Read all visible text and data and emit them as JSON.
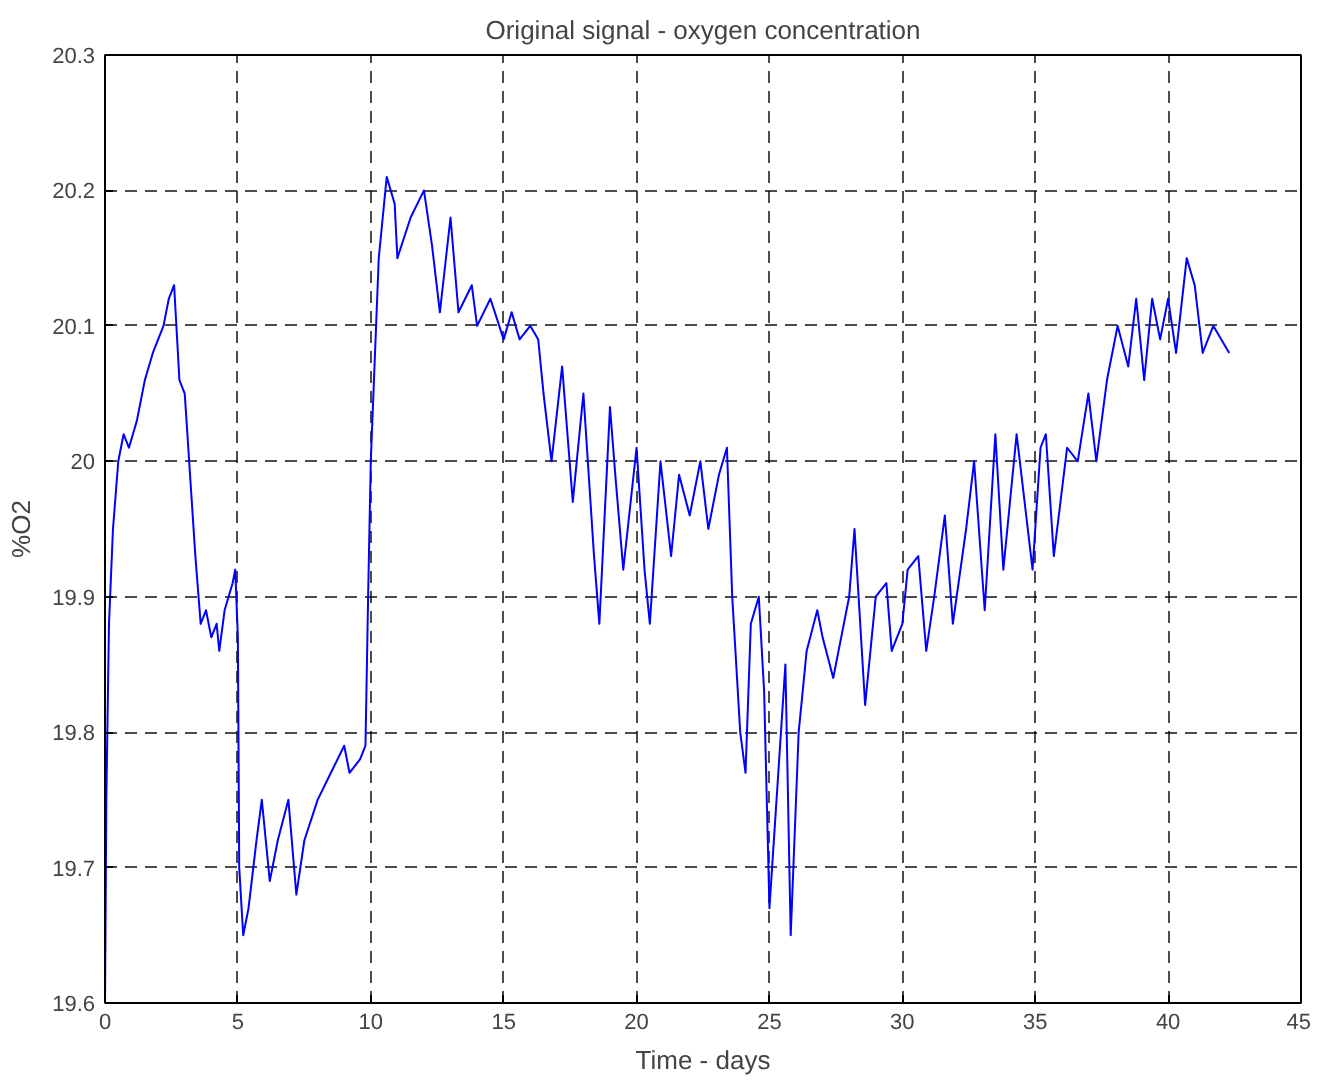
{
  "chart_data": {
    "type": "line",
    "title": "Original signal - oxygen concentration",
    "xlabel": "Time - days",
    "ylabel": "%O2",
    "xlim": [
      0,
      45
    ],
    "xticks": [
      0,
      5,
      10,
      15,
      20,
      25,
      30,
      35,
      40,
      45
    ],
    "ylim": [
      19.6,
      20.3
    ],
    "yticks": [
      19.6,
      19.7,
      19.8,
      19.9,
      20,
      20.1,
      20.2,
      20.3
    ],
    "grid": true,
    "line_style": "solid",
    "marker": "none",
    "x": [
      0,
      0.05,
      0.15,
      0.3,
      0.5,
      0.7,
      0.9,
      1.2,
      1.5,
      1.8,
      2.0,
      2.2,
      2.4,
      2.6,
      2.8,
      3.0,
      3.2,
      3.4,
      3.6,
      3.8,
      4.0,
      4.2,
      4.3,
      4.5,
      4.8,
      4.9,
      5.0,
      5.05,
      5.2,
      5.4,
      5.7,
      5.9,
      6.2,
      6.5,
      6.9,
      7.2,
      7.5,
      8.0,
      8.5,
      9.0,
      9.2,
      9.6,
      9.8,
      9.9,
      10.0,
      10.1,
      10.3,
      10.6,
      10.9,
      11.0,
      11.5,
      12.0,
      12.3,
      12.6,
      13.0,
      13.3,
      13.8,
      14.0,
      14.5,
      15.0,
      15.3,
      15.6,
      16.0,
      16.3,
      16.5,
      16.8,
      17.2,
      17.6,
      18.0,
      18.4,
      18.6,
      19.0,
      19.2,
      19.5,
      20.0,
      20.3,
      20.5,
      20.9,
      21.3,
      21.6,
      22.0,
      22.4,
      22.7,
      23.1,
      23.4,
      23.6,
      23.9,
      24.1,
      24.3,
      24.6,
      24.8,
      25.0,
      25.2,
      25.6,
      25.8,
      26.1,
      26.4,
      26.8,
      27.0,
      27.4,
      27.6,
      28.0,
      28.2,
      28.6,
      29.0,
      29.4,
      29.6,
      30.0,
      30.2,
      30.6,
      30.9,
      31.2,
      31.6,
      31.9,
      32.4,
      32.7,
      33.1,
      33.5,
      33.8,
      34.3,
      34.9,
      35.2,
      35.4,
      35.7,
      36.2,
      36.6,
      37.0,
      37.3,
      37.7,
      38.1,
      38.5,
      38.8,
      39.1,
      39.4,
      39.7,
      40.0,
      40.3,
      40.7,
      41.0,
      41.3,
      41.7,
      42.0,
      42.3
    ],
    "series": [
      {
        "color": "#0000ff",
        "values": [
          19.6,
          19.75,
          19.88,
          19.95,
          20.0,
          20.02,
          20.01,
          20.03,
          20.06,
          20.08,
          20.09,
          20.1,
          20.12,
          20.13,
          20.06,
          20.05,
          19.99,
          19.93,
          19.88,
          19.89,
          19.87,
          19.88,
          19.86,
          19.89,
          19.91,
          19.92,
          19.87,
          19.7,
          19.65,
          19.67,
          19.72,
          19.75,
          19.69,
          19.72,
          19.75,
          19.68,
          19.72,
          19.75,
          19.77,
          19.79,
          19.77,
          19.78,
          19.79,
          19.9,
          20.0,
          20.05,
          20.15,
          20.21,
          20.19,
          20.15,
          20.18,
          20.2,
          20.16,
          20.11,
          20.18,
          20.11,
          20.13,
          20.1,
          20.12,
          20.09,
          20.11,
          20.09,
          20.1,
          20.09,
          20.05,
          20.0,
          20.07,
          19.97,
          20.05,
          19.93,
          19.88,
          20.04,
          19.99,
          19.92,
          20.01,
          19.92,
          19.88,
          20.0,
          19.93,
          19.99,
          19.96,
          20.0,
          19.95,
          19.99,
          20.01,
          19.9,
          19.8,
          19.77,
          19.88,
          19.9,
          19.83,
          19.67,
          19.73,
          19.85,
          19.65,
          19.8,
          19.86,
          19.89,
          19.87,
          19.84,
          19.86,
          19.9,
          19.95,
          19.82,
          19.9,
          19.91,
          19.86,
          19.88,
          19.92,
          19.93,
          19.86,
          19.9,
          19.96,
          19.88,
          19.95,
          20.0,
          19.89,
          20.02,
          19.92,
          20.02,
          19.92,
          20.01,
          20.02,
          19.93,
          20.01,
          20.0,
          20.05,
          20.0,
          20.06,
          20.1,
          20.07,
          20.12,
          20.06,
          20.12,
          20.09,
          20.12,
          20.08,
          20.15,
          20.13,
          20.08,
          20.1,
          20.09,
          20.08
        ]
      }
    ]
  }
}
